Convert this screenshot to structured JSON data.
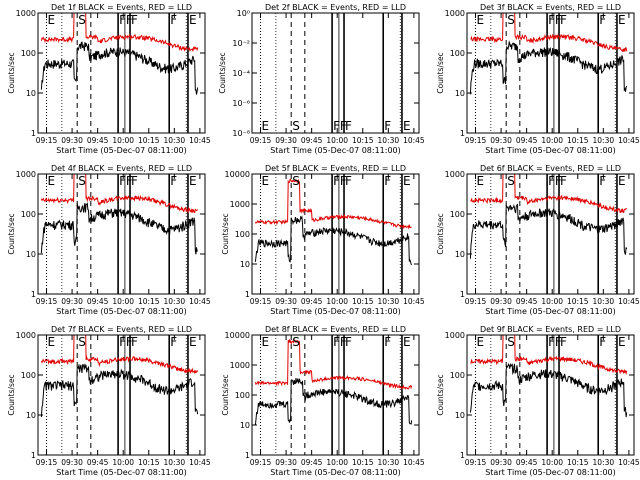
{
  "figure": {
    "time_axis_label": "Start Time (05-Dec-07 08:11:00)",
    "ylabel": "Counts/sec",
    "x_tick_labels": [
      "09:15",
      "09:30",
      "09:45",
      "10:00",
      "10:15",
      "10:30",
      "10:45"
    ],
    "colors": {
      "events": "#000000",
      "lld": "#e00000",
      "axis": "#000000"
    }
  },
  "chart_data": [
    {
      "type": "line",
      "title": "Det 1f BLACK = Events, RED = LLD",
      "ylabel": "Counts/sec",
      "xlabel": "Start Time (05-Dec-07 08:11:00)",
      "yscale": "log",
      "ylim": [
        1,
        1000
      ],
      "y_tick_labels": [
        "1",
        "10",
        "100",
        "1000"
      ],
      "x_tick_labels": [
        "09:15",
        "09:30",
        "09:45",
        "10:00",
        "10:15",
        "10:30",
        "10:45"
      ],
      "markers": [
        {
          "label": "E",
          "x": "09:15"
        },
        {
          "label": "S",
          "x": "09:33"
        },
        {
          "label": "F",
          "x": "09:57"
        },
        {
          "label": "F",
          "x": "10:01"
        },
        {
          "label": "F",
          "x": "10:04"
        },
        {
          "label": "F",
          "x": "10:27"
        },
        {
          "label": "E",
          "x": "10:38"
        }
      ],
      "series": [
        {
          "name": "Events",
          "color": "#000000",
          "level": "low"
        },
        {
          "name": "LLD",
          "color": "#e00000",
          "level": "high"
        }
      ]
    },
    {
      "type": "line",
      "title": "Det 2f BLACK = Events, RED = LLD",
      "ylabel": "Counts/sec",
      "xlabel": "Start Time (05-Dec-07 08:11:00)",
      "yscale": "log",
      "ylim": [
        1e-08,
        1
      ],
      "y_tick_labels": [
        "10⁻⁸",
        "10⁻⁶",
        "10⁻⁴",
        "10⁻²",
        "10⁰"
      ],
      "x_tick_labels": [
        "09:15",
        "09:30",
        "09:45",
        "10:00",
        "10:15",
        "10:30",
        "10:45"
      ],
      "markers": [
        {
          "label": "E",
          "x": "09:15"
        },
        {
          "label": "S",
          "x": "09:33"
        },
        {
          "label": "F",
          "x": "09:57"
        },
        {
          "label": "F",
          "x": "10:01"
        },
        {
          "label": "F",
          "x": "10:04"
        },
        {
          "label": "F",
          "x": "10:27"
        },
        {
          "label": "E",
          "x": "10:38"
        }
      ],
      "series": []
    },
    {
      "type": "line",
      "title": "Det 3f BLACK = Events, RED = LLD",
      "ylabel": "Counts/sec",
      "xlabel": "Start Time (05-Dec-07 08:11:00)",
      "yscale": "log",
      "ylim": [
        1,
        1000
      ],
      "y_tick_labels": [
        "1",
        "10",
        "100",
        "1000"
      ],
      "x_tick_labels": [
        "09:15",
        "09:30",
        "09:45",
        "10:00",
        "10:15",
        "10:30",
        "10:45"
      ],
      "markers": [
        {
          "label": "E",
          "x": "09:15"
        },
        {
          "label": "S",
          "x": "09:33"
        },
        {
          "label": "F",
          "x": "09:57"
        },
        {
          "label": "F",
          "x": "10:01"
        },
        {
          "label": "F",
          "x": "10:04"
        },
        {
          "label": "F",
          "x": "10:27"
        },
        {
          "label": "E",
          "x": "10:38"
        }
      ],
      "series": [
        {
          "name": "Events",
          "color": "#000000",
          "level": "low"
        },
        {
          "name": "LLD",
          "color": "#e00000",
          "level": "high"
        }
      ]
    },
    {
      "type": "line",
      "title": "Det 4f BLACK = Events, RED = LLD",
      "ylabel": "Counts/sec",
      "xlabel": "Start Time (05-Dec-07 08:11:00)",
      "yscale": "log",
      "ylim": [
        1,
        1000
      ],
      "y_tick_labels": [
        "1",
        "10",
        "100",
        "1000"
      ],
      "x_tick_labels": [
        "09:15",
        "09:30",
        "09:45",
        "10:00",
        "10:15",
        "10:30",
        "10:45"
      ],
      "markers": [
        {
          "label": "E",
          "x": "09:15"
        },
        {
          "label": "S",
          "x": "09:33"
        },
        {
          "label": "F",
          "x": "09:57"
        },
        {
          "label": "F",
          "x": "10:01"
        },
        {
          "label": "F",
          "x": "10:04"
        },
        {
          "label": "F",
          "x": "10:27"
        },
        {
          "label": "E",
          "x": "10:38"
        }
      ],
      "series": [
        {
          "name": "Events",
          "color": "#000000",
          "level": "low"
        },
        {
          "name": "LLD",
          "color": "#e00000",
          "level": "high"
        }
      ]
    },
    {
      "type": "line",
      "title": "Det 5f BLACK = Events, RED = LLD",
      "ylabel": "Counts/sec",
      "xlabel": "Start Time (05-Dec-07 08:11:00)",
      "yscale": "log",
      "ylim": [
        1,
        10000
      ],
      "y_tick_labels": [
        "1",
        "10",
        "100",
        "1000",
        "10000"
      ],
      "x_tick_labels": [
        "09:15",
        "09:30",
        "09:45",
        "10:00",
        "10:15",
        "10:30",
        "10:45"
      ],
      "markers": [
        {
          "label": "E",
          "x": "09:15"
        },
        {
          "label": "S",
          "x": "09:33"
        },
        {
          "label": "F",
          "x": "09:57"
        },
        {
          "label": "F",
          "x": "10:01"
        },
        {
          "label": "F",
          "x": "10:04"
        },
        {
          "label": "F",
          "x": "10:27"
        },
        {
          "label": "E",
          "x": "10:38"
        }
      ],
      "series": [
        {
          "name": "Events",
          "color": "#000000",
          "level": "low"
        },
        {
          "name": "LLD",
          "color": "#e00000",
          "level": "high"
        }
      ]
    },
    {
      "type": "line",
      "title": "Det 6f BLACK = Events, RED = LLD",
      "ylabel": "Counts/sec",
      "xlabel": "Start Time (05-Dec-07 08:11:00)",
      "yscale": "log",
      "ylim": [
        1,
        1000
      ],
      "y_tick_labels": [
        "1",
        "10",
        "100",
        "1000"
      ],
      "x_tick_labels": [
        "09:15",
        "09:30",
        "09:45",
        "10:00",
        "10:15",
        "10:30",
        "10:45"
      ],
      "markers": [
        {
          "label": "E",
          "x": "09:15"
        },
        {
          "label": "S",
          "x": "09:33"
        },
        {
          "label": "F",
          "x": "09:57"
        },
        {
          "label": "F",
          "x": "10:01"
        },
        {
          "label": "F",
          "x": "10:04"
        },
        {
          "label": "F",
          "x": "10:27"
        },
        {
          "label": "E",
          "x": "10:38"
        }
      ],
      "series": [
        {
          "name": "Events",
          "color": "#000000",
          "level": "low"
        },
        {
          "name": "LLD",
          "color": "#e00000",
          "level": "high"
        }
      ]
    },
    {
      "type": "line",
      "title": "Det 7f BLACK = Events, RED = LLD",
      "ylabel": "Counts/sec",
      "xlabel": "Start Time (05-Dec-07 08:11:00)",
      "yscale": "log",
      "ylim": [
        1,
        1000
      ],
      "y_tick_labels": [
        "1",
        "10",
        "100",
        "1000"
      ],
      "x_tick_labels": [
        "09:15",
        "09:30",
        "09:45",
        "10:00",
        "10:15",
        "10:30",
        "10:45"
      ],
      "markers": [
        {
          "label": "E",
          "x": "09:15"
        },
        {
          "label": "S",
          "x": "09:33"
        },
        {
          "label": "F",
          "x": "09:57"
        },
        {
          "label": "F",
          "x": "10:01"
        },
        {
          "label": "F",
          "x": "10:04"
        },
        {
          "label": "F",
          "x": "10:27"
        },
        {
          "label": "E",
          "x": "10:38"
        }
      ],
      "series": [
        {
          "name": "Events",
          "color": "#000000",
          "level": "low"
        },
        {
          "name": "LLD",
          "color": "#e00000",
          "level": "high"
        }
      ]
    },
    {
      "type": "line",
      "title": "Det 8f BLACK = Events, RED = LLD",
      "ylabel": "Counts/sec",
      "xlabel": "Start Time (05-Dec-07 08:11:00)",
      "yscale": "log",
      "ylim": [
        1,
        10000
      ],
      "y_tick_labels": [
        "1",
        "10",
        "100",
        "1000",
        "10000"
      ],
      "x_tick_labels": [
        "09:15",
        "09:30",
        "09:45",
        "10:00",
        "10:15",
        "10:30",
        "10:45"
      ],
      "markers": [
        {
          "label": "E",
          "x": "09:15"
        },
        {
          "label": "S",
          "x": "09:33"
        },
        {
          "label": "F",
          "x": "09:57"
        },
        {
          "label": "F",
          "x": "10:01"
        },
        {
          "label": "F",
          "x": "10:04"
        },
        {
          "label": "F",
          "x": "10:27"
        },
        {
          "label": "E",
          "x": "10:38"
        }
      ],
      "series": [
        {
          "name": "Events",
          "color": "#000000",
          "level": "low"
        },
        {
          "name": "LLD",
          "color": "#e00000",
          "level": "high"
        }
      ]
    },
    {
      "type": "line",
      "title": "Det 9f BLACK = Events, RED = LLD",
      "ylabel": "Counts/sec",
      "xlabel": "Start Time (05-Dec-07 08:11:00)",
      "yscale": "log",
      "ylim": [
        1,
        1000
      ],
      "y_tick_labels": [
        "1",
        "10",
        "100",
        "1000"
      ],
      "x_tick_labels": [
        "09:15",
        "09:30",
        "09:45",
        "10:00",
        "10:15",
        "10:30",
        "10:45"
      ],
      "markers": [
        {
          "label": "E",
          "x": "09:15"
        },
        {
          "label": "S",
          "x": "09:33"
        },
        {
          "label": "F",
          "x": "09:57"
        },
        {
          "label": "F",
          "x": "10:01"
        },
        {
          "label": "F",
          "x": "10:04"
        },
        {
          "label": "F",
          "x": "10:27"
        },
        {
          "label": "E",
          "x": "10:38"
        }
      ],
      "series": [
        {
          "name": "Events",
          "color": "#000000",
          "level": "low"
        },
        {
          "name": "LLD",
          "color": "#e00000",
          "level": "high"
        }
      ]
    }
  ]
}
